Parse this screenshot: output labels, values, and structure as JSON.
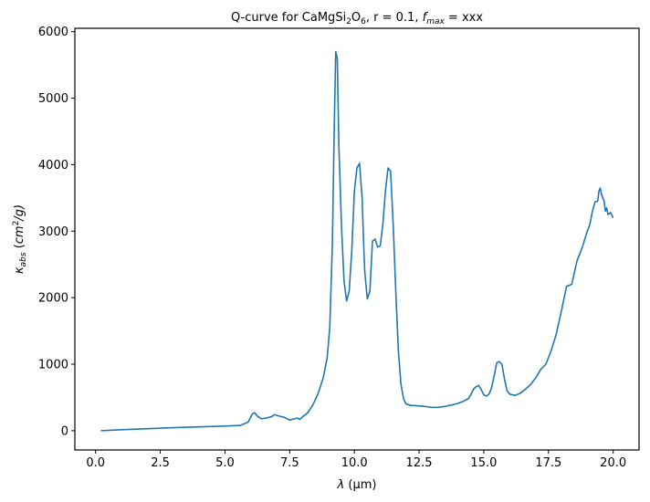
{
  "chart_data": {
    "type": "line",
    "title_parts": {
      "prefix": "Q-curve for CaMgSi",
      "sub1": "2",
      "mid": "O",
      "sub2": "6",
      "rest": ", r = 0.1, ",
      "f_sym": "f",
      "f_sub": "max",
      "suffix": " = xxx"
    },
    "xlabel_parts": {
      "sym": "λ",
      "unit": " (μm)"
    },
    "ylabel_parts": {
      "kappa": "κ",
      "sub": "abs",
      "open": " (",
      "unit": "cm",
      "sup": "2",
      "slash": "/g)"
    },
    "xlim": [
      -0.8,
      21.0
    ],
    "ylim": [
      -290,
      6050
    ],
    "x_ticks": [
      0.0,
      2.5,
      5.0,
      7.5,
      10.0,
      12.5,
      15.0,
      17.5,
      20.0
    ],
    "x_tick_labels": [
      "0.0",
      "2.5",
      "5.0",
      "7.5",
      "10.0",
      "12.5",
      "15.0",
      "17.5",
      "20.0"
    ],
    "y_ticks": [
      0,
      1000,
      2000,
      3000,
      4000,
      5000,
      6000
    ],
    "y_tick_labels": [
      "0",
      "1000",
      "2000",
      "3000",
      "4000",
      "5000",
      "6000"
    ],
    "grid": false,
    "series": [
      {
        "color": "#1f77b4",
        "x": [
          0.2,
          1.0,
          2.0,
          3.0,
          4.0,
          5.0,
          5.6,
          5.9,
          6.05,
          6.15,
          6.25,
          6.4,
          6.6,
          6.8,
          6.9,
          7.1,
          7.3,
          7.5,
          7.7,
          7.8,
          7.9,
          8.0,
          8.2,
          8.4,
          8.6,
          8.8,
          8.95,
          9.05,
          9.15,
          9.22,
          9.28,
          9.34,
          9.4,
          9.5,
          9.6,
          9.7,
          9.8,
          9.9,
          10.0,
          10.1,
          10.2,
          10.3,
          10.35,
          10.4,
          10.5,
          10.6,
          10.7,
          10.8,
          10.9,
          11.0,
          11.1,
          11.2,
          11.3,
          11.4,
          11.5,
          11.6,
          11.7,
          11.8,
          11.9,
          12.0,
          12.2,
          12.4,
          12.6,
          12.8,
          13.0,
          13.2,
          13.5,
          13.8,
          14.0,
          14.2,
          14.4,
          14.5,
          14.6,
          14.7,
          14.8,
          14.9,
          15.0,
          15.1,
          15.2,
          15.3,
          15.4,
          15.5,
          15.6,
          15.7,
          15.8,
          15.9,
          16.0,
          16.2,
          16.4,
          16.6,
          16.8,
          17.0,
          17.2,
          17.4,
          17.6,
          17.8,
          18.0,
          18.2,
          18.4,
          18.6,
          18.8,
          19.0,
          19.1,
          19.2,
          19.3,
          19.4,
          19.45,
          19.5,
          19.55,
          19.6,
          19.65,
          19.7,
          19.75,
          19.8,
          19.9,
          20.0
        ],
        "y": [
          0,
          15,
          30,
          45,
          58,
          70,
          80,
          130,
          250,
          270,
          220,
          180,
          190,
          210,
          240,
          220,
          200,
          160,
          180,
          190,
          170,
          210,
          270,
          390,
          560,
          800,
          1100,
          1550,
          2800,
          4500,
          5700,
          5600,
          4300,
          3100,
          2250,
          1950,
          2100,
          2700,
          3600,
          3950,
          4020,
          3500,
          2900,
          2400,
          1980,
          2100,
          2850,
          2880,
          2760,
          2780,
          3100,
          3600,
          3950,
          3900,
          3100,
          2100,
          1200,
          700,
          480,
          400,
          380,
          375,
          370,
          360,
          350,
          350,
          365,
          390,
          410,
          440,
          480,
          540,
          620,
          660,
          680,
          620,
          540,
          520,
          550,
          640,
          820,
          1020,
          1040,
          1000,
          780,
          600,
          550,
          530,
          560,
          620,
          690,
          790,
          920,
          1000,
          1200,
          1450,
          1800,
          2170,
          2200,
          2550,
          2750,
          3000,
          3100,
          3300,
          3440,
          3450,
          3600,
          3650,
          3550,
          3500,
          3450,
          3300,
          3350,
          3250,
          3280,
          3200
        ]
      }
    ]
  }
}
